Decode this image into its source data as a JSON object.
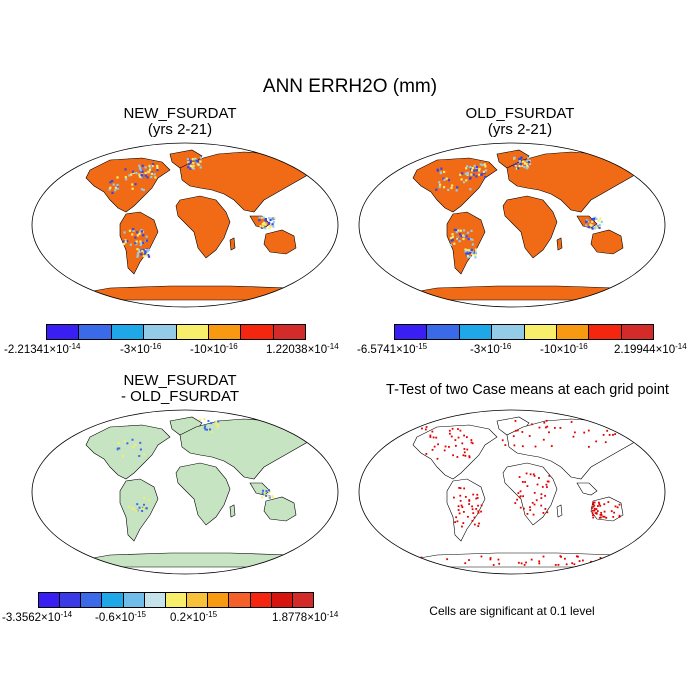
{
  "figure": {
    "title": "ANN ERRH2O (mm)"
  },
  "panels": [
    {
      "id": "new",
      "title_line1": "NEW_FSURDAT",
      "title_line2": "(yrs 2-21)",
      "colormap": "mostly orange/red over land, blue patches in N. America, Amazon, Scandinavia, Indonesia",
      "colorbar": {
        "colors": [
          "#3a1ff2",
          "#3a6ae8",
          "#1ea8e8",
          "#94cbe6",
          "#f7ee6b",
          "#f79a12",
          "#f5260f",
          "#d32a2a"
        ],
        "labels": [
          {
            "mantissa": "-2.21341",
            "exp": "-14"
          },
          {
            "mantissa": "-3",
            "exp": "-16"
          },
          {
            "mantissa": "-10",
            "exp": "-16"
          },
          {
            "mantissa": "1.22038",
            "exp": "-14"
          }
        ]
      }
    },
    {
      "id": "old",
      "title_line1": "OLD_FSURDAT",
      "title_line2": "(yrs 2-21)",
      "colorbar": {
        "colors": [
          "#3a1ff2",
          "#3a6ae8",
          "#1ea8e8",
          "#94cbe6",
          "#f7ee6b",
          "#f79a12",
          "#f5260f",
          "#d32a2a"
        ],
        "labels": [
          {
            "mantissa": "-6.5741",
            "exp": "-15"
          },
          {
            "mantissa": "-3",
            "exp": "-16"
          },
          {
            "mantissa": "-10",
            "exp": "-16"
          },
          {
            "mantissa": "2.19944",
            "exp": "-14"
          }
        ]
      }
    },
    {
      "id": "diff",
      "title_line1": "NEW_FSURDAT",
      "title_line2": "- OLD_FSURDAT",
      "colorbar": {
        "colors": [
          "#3a1ff2",
          "#3a3ae6",
          "#3a6ae8",
          "#1ea8e8",
          "#6fbde8",
          "#c5e3ea",
          "#f7ee6b",
          "#f7c23a",
          "#f79a12",
          "#f5602a",
          "#f5260f",
          "#d8140f",
          "#d32a2a"
        ],
        "labels": [
          {
            "mantissa": "-3.3562",
            "exp": "-14"
          },
          {
            "mantissa": "-0.6",
            "exp": "-15"
          },
          {
            "mantissa": "0.2",
            "exp": "-15"
          },
          {
            "mantissa": "1.8778",
            "exp": "-14"
          }
        ]
      }
    },
    {
      "id": "ttest",
      "title": "T-Test of two Case means at each grid point",
      "note": "Cells are significant at 0.1 level"
    }
  ],
  "colors": {
    "land_new": "#f16a16",
    "land_diff": "#c6e3c2",
    "sig": "#e00000",
    "blue_patch": "#3a45e6"
  }
}
